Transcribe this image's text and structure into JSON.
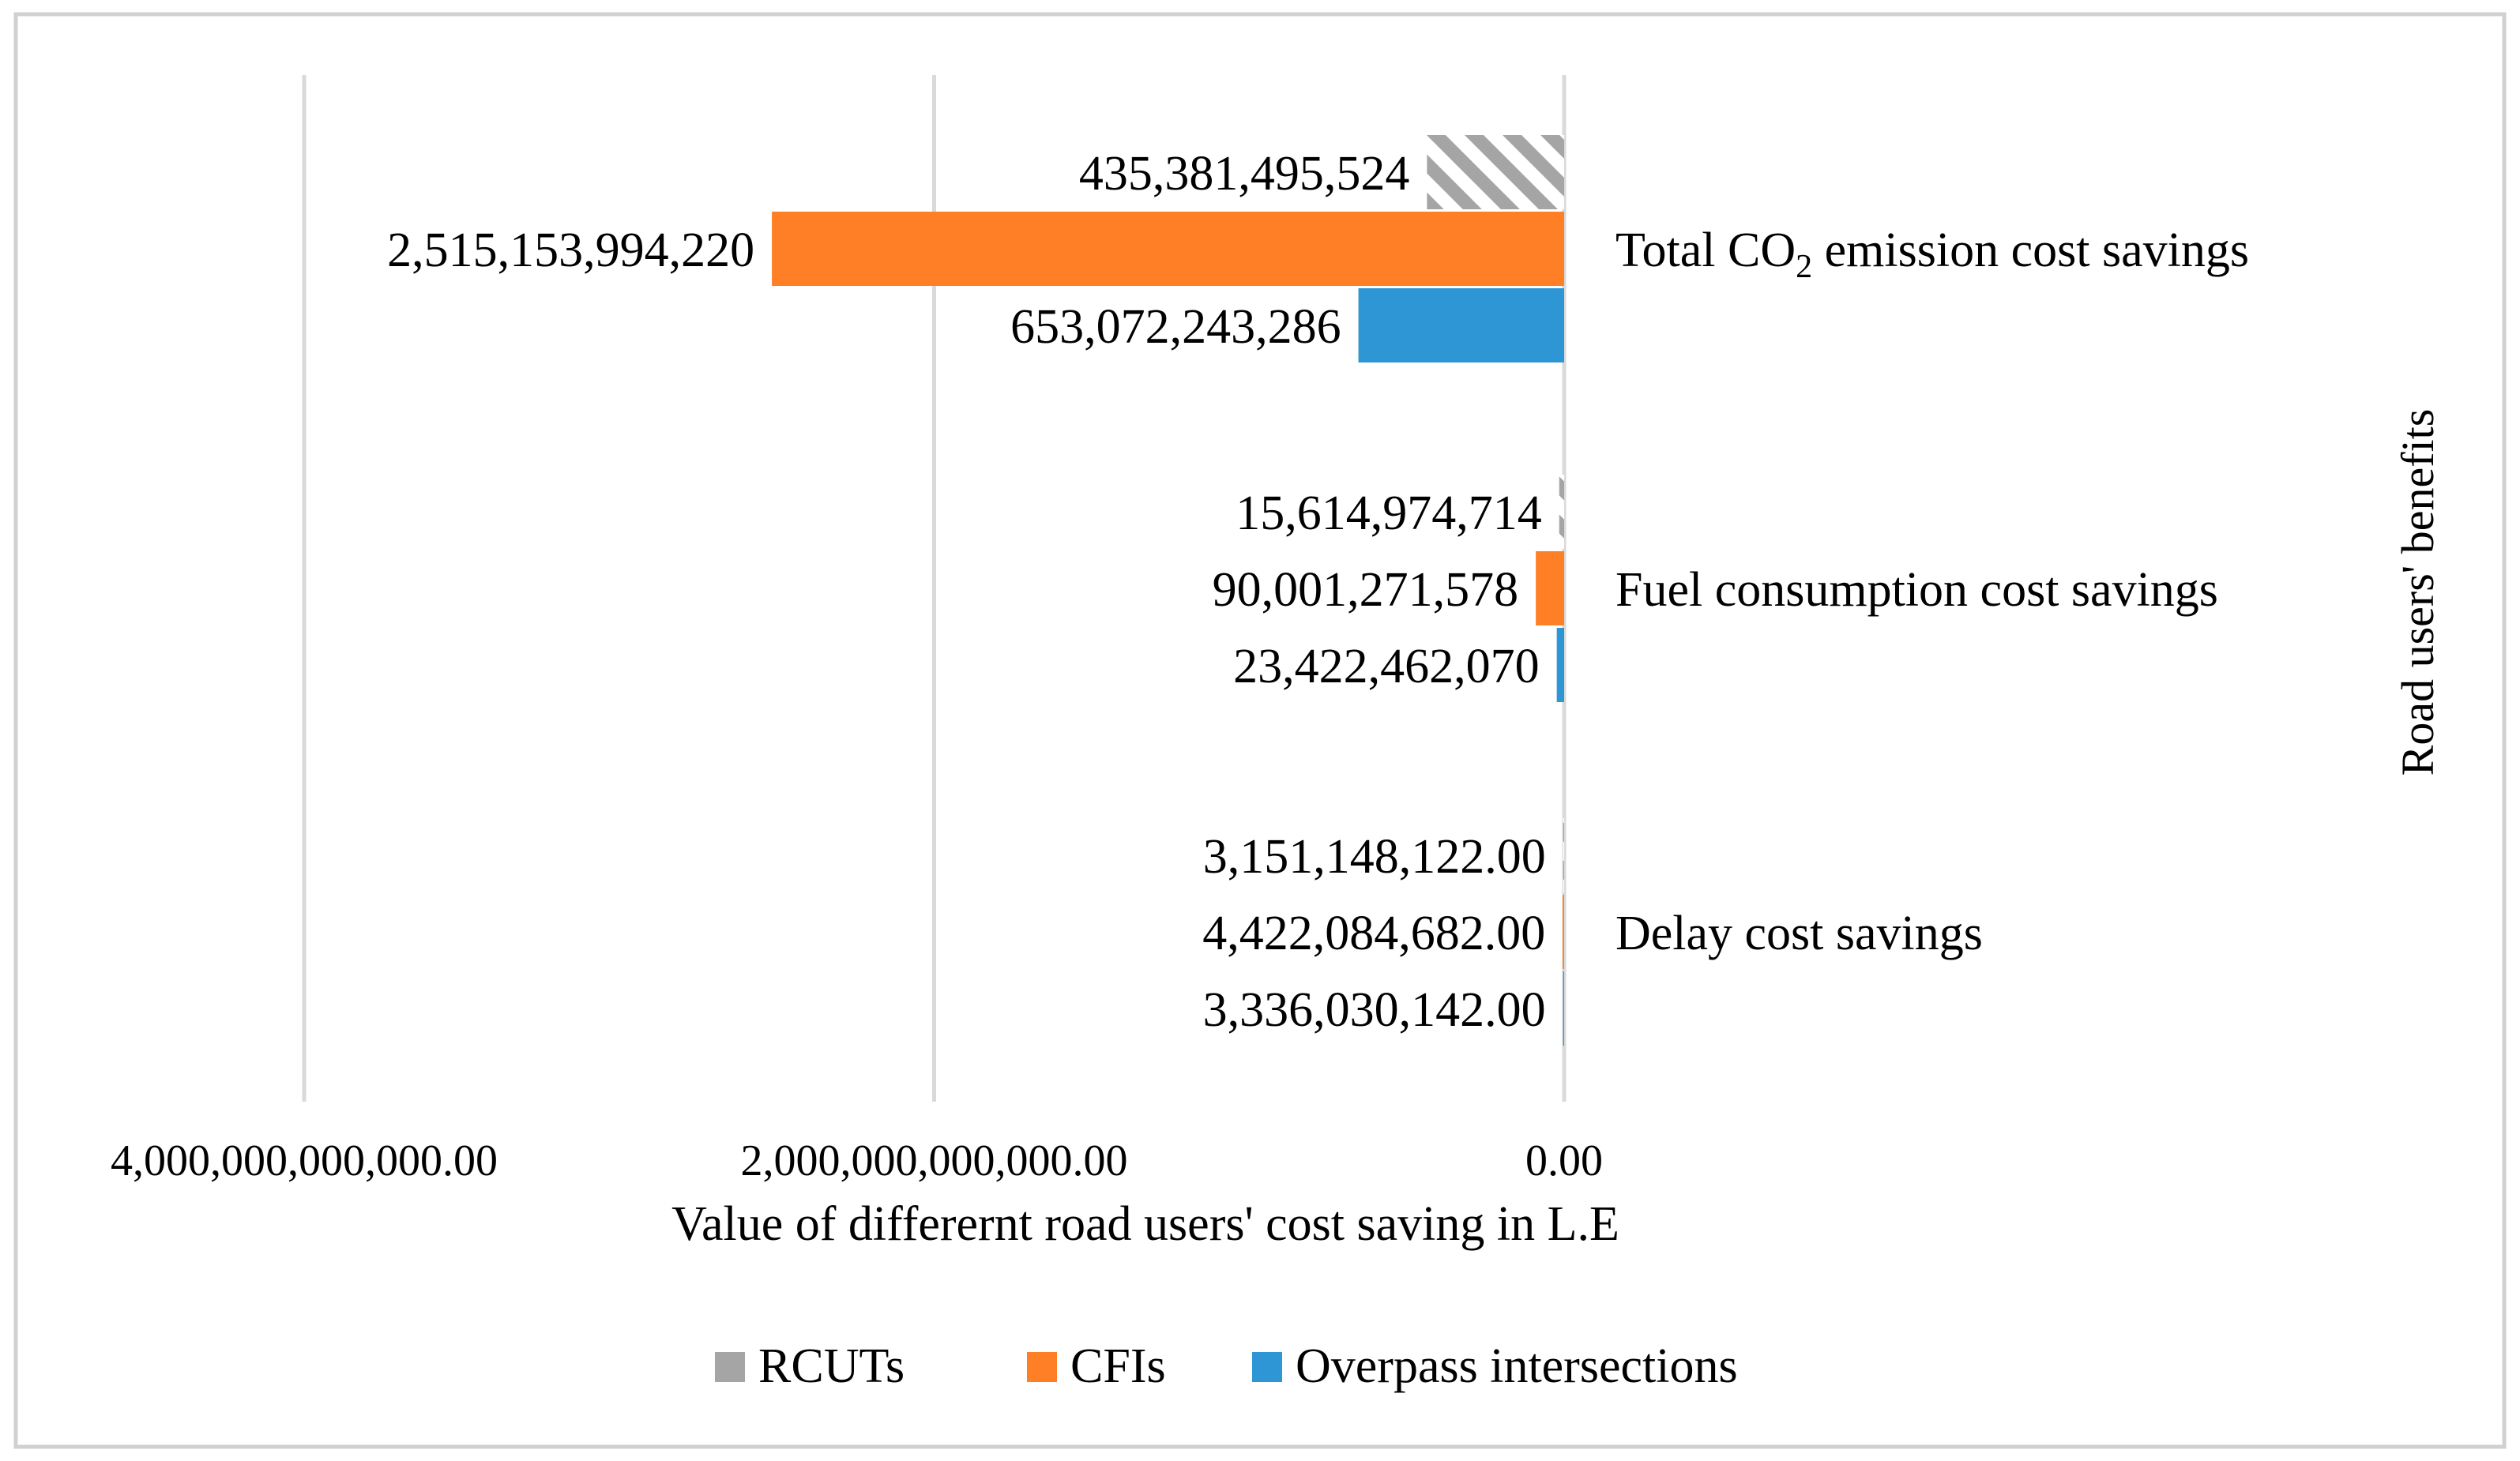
{
  "chart_data": {
    "type": "bar",
    "orientation": "horizontal",
    "x_reversed": true,
    "categories": [
      {
        "pre": "Total ",
        "main": "CO",
        "sub": "2",
        "post": "  emission cost savings"
      },
      {
        "pre": "Fuel consumption cost savings",
        "main": "",
        "sub": "",
        "post": ""
      },
      {
        "pre": "Delay cost savings",
        "main": "",
        "sub": "",
        "post": ""
      }
    ],
    "series": [
      {
        "name": "RCUTs",
        "color": "#a5a5a5",
        "pattern": "diagonal-hatch",
        "values": [
          435381495524,
          15614974714,
          3151148122
        ],
        "labels": [
          "435,381,495,524",
          "15,614,974,714",
          "3,151,148,122.00"
        ]
      },
      {
        "name": "CFIs",
        "color": "#ff7f27",
        "pattern": "solid",
        "values": [
          2515153994220,
          90001271578,
          4422084682
        ],
        "labels": [
          "2,515,153,994,220",
          "90,001,271,578",
          "4,422,084,682.00"
        ]
      },
      {
        "name": "Overpass intersections",
        "color": "#2e96d4",
        "pattern": "solid",
        "values": [
          653072243286,
          23422462070,
          3336030142
        ],
        "labels": [
          "653,072,243,286",
          "23,422,462,070",
          "3,336,030,142.00"
        ]
      }
    ],
    "xlim": [
      0,
      4000000000000
    ],
    "x_ticks": [
      {
        "value": 4000000000000,
        "label": "4,000,000,000,000.00"
      },
      {
        "value": 2000000000000,
        "label": "2,000,000,000,000.00"
      },
      {
        "value": 0,
        "label": "0.00"
      }
    ],
    "xlabel": "Value of differernt road users' cost saving in L.E",
    "ylabel": "Road users' benefits",
    "grid": true,
    "legend_position": "bottom"
  }
}
